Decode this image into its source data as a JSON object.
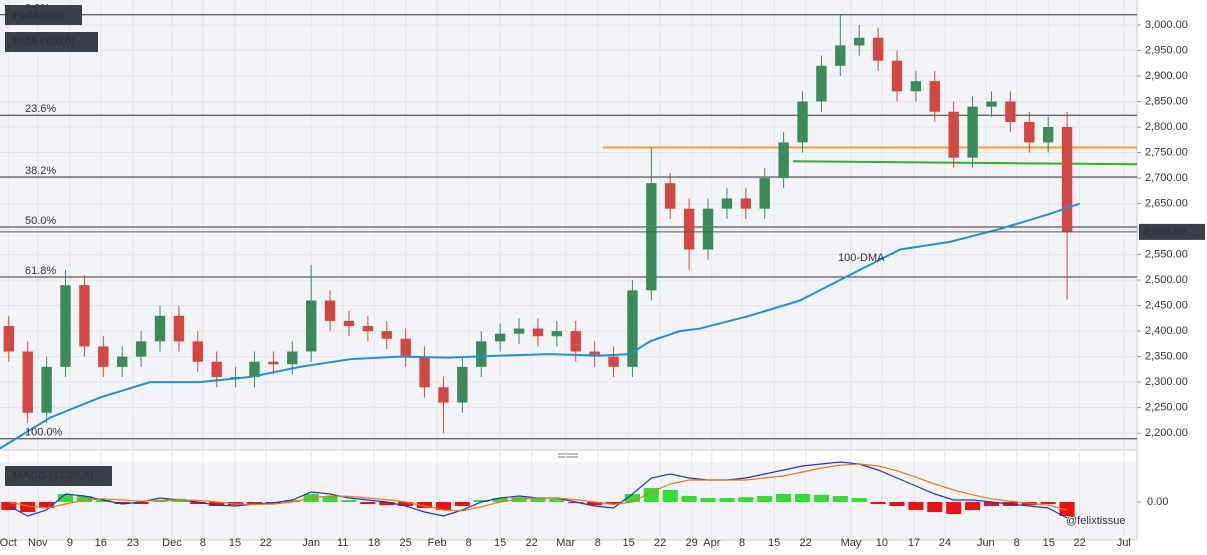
{
  "chart_data": [
    {
      "type": "candlestick",
      "title": "Palladium",
      "subtitle": "SMA (100,0)",
      "annotation": "100-DMA",
      "up_color": "#3b8a5a",
      "down_color": "#d2473f",
      "grid": true,
      "x": [
        1.4,
        4.4,
        7.4,
        10.4,
        13.4,
        16.4,
        19.4,
        22.4,
        25.4,
        28.4,
        31.4,
        34.4,
        37.4,
        40.4,
        43.4,
        46.4,
        49.4,
        52.4,
        55.4,
        58.4,
        61.4,
        64.4,
        67.4,
        70.4,
        73.4,
        76.4,
        79.4,
        82.4,
        85.4,
        88.4,
        91.4,
        94.4,
        97.4,
        100.4,
        103.4,
        106.4,
        109.4,
        112.4,
        115.4,
        118.4,
        121.4,
        124.4,
        127.4,
        130.4,
        133.4,
        136.4,
        139.4,
        142.4,
        145.4,
        148.4,
        151.4,
        154.4,
        157.4,
        160.4,
        163.4,
        166.4,
        169.4
      ],
      "open": [
        2410,
        2360,
        2240,
        2330,
        2490,
        2370,
        2330,
        2350,
        2380,
        2430,
        2380,
        2340,
        2310,
        2310,
        2340,
        2335,
        2360,
        2460,
        2420,
        2410,
        2400,
        2385,
        2350,
        2290,
        2260,
        2330,
        2380,
        2395,
        2405,
        2390,
        2400,
        2360,
        2350,
        2330,
        2480,
        2690,
        2640,
        2560,
        2640,
        2660,
        2640,
        2700,
        2770,
        2850,
        2920,
        2960,
        2975,
        2930,
        2870,
        2890,
        2830,
        2740,
        2840,
        2850,
        2810,
        2770,
        2800
      ],
      "high": [
        2430,
        2380,
        2350,
        2520,
        2510,
        2390,
        2370,
        2400,
        2450,
        2450,
        2400,
        2360,
        2330,
        2360,
        2360,
        2380,
        2530,
        2480,
        2440,
        2430,
        2420,
        2405,
        2370,
        2310,
        2350,
        2400,
        2415,
        2425,
        2425,
        2420,
        2420,
        2380,
        2370,
        2500,
        2760,
        2710,
        2660,
        2660,
        2680,
        2680,
        2720,
        2790,
        2870,
        2940,
        3020,
        3000,
        2995,
        2950,
        2910,
        2910,
        2850,
        2860,
        2870,
        2870,
        2830,
        2820,
        2830
      ],
      "low": [
        2340,
        2220,
        2220,
        2310,
        2350,
        2310,
        2310,
        2330,
        2360,
        2360,
        2320,
        2290,
        2290,
        2290,
        2315,
        2315,
        2340,
        2400,
        2390,
        2380,
        2365,
        2330,
        2270,
        2200,
        2240,
        2310,
        2360,
        2375,
        2370,
        2370,
        2340,
        2330,
        2310,
        2310,
        2460,
        2620,
        2520,
        2540,
        2620,
        2620,
        2620,
        2680,
        2750,
        2830,
        2900,
        2940,
        2910,
        2850,
        2850,
        2810,
        2720,
        2720,
        2820,
        2790,
        2750,
        2750,
        2462
      ],
      "close": [
        2360,
        2240,
        2330,
        2490,
        2370,
        2330,
        2350,
        2380,
        2430,
        2380,
        2340,
        2310,
        2310,
        2340,
        2335,
        2360,
        2460,
        2420,
        2410,
        2400,
        2385,
        2350,
        2290,
        2260,
        2330,
        2380,
        2395,
        2405,
        2390,
        2400,
        2360,
        2350,
        2330,
        2480,
        2690,
        2640,
        2560,
        2640,
        2660,
        2640,
        2700,
        2770,
        2850,
        2920,
        2960,
        2975,
        2930,
        2870,
        2890,
        2830,
        2740,
        2840,
        2850,
        2810,
        2770,
        2800,
        2594
      ],
      "sma": {
        "color": "#1e90e0",
        "x": [
          0,
          7.9,
          15.9,
          23.8,
          31.7,
          39.7,
          47.6,
          55.6,
          63.5,
          71.4,
          79.4,
          87.3,
          95.2,
          100,
          103.2,
          107.9,
          111.1,
          119,
          127,
          134.9,
          142.9,
          150.8,
          158.7,
          166.7,
          171.4
        ],
        "values": [
          2170,
          2230,
          2270,
          2300,
          2300,
          2310,
          2330,
          2345,
          2350,
          2348,
          2352,
          2355,
          2352,
          2355,
          2380,
          2400,
          2405,
          2430,
          2460,
          2510,
          2560,
          2575,
          2600,
          2630,
          2650
        ]
      },
      "levels": [
        {
          "label": "0.0%",
          "value": 3020
        },
        {
          "label": "23.6%",
          "value": 2823
        },
        {
          "label": "38.2%",
          "value": 2702
        },
        {
          "label": "50.0%",
          "value": 2604
        },
        {
          "label": "61.8%",
          "value": 2506
        },
        {
          "label": "100.0%",
          "value": 2189
        }
      ],
      "lines": [
        {
          "color": "#f0a030",
          "x": [
            95.7,
            180.5
          ],
          "values": [
            2760,
            2760
          ]
        },
        {
          "color": "#22bb22",
          "x": [
            125.9,
            180.5
          ],
          "values": [
            2733,
            2727
          ]
        }
      ],
      "last_price": {
        "value": 2594.5,
        "label": "2,594.50"
      },
      "xlim": [
        0,
        180.5
      ],
      "ylim": [
        2167,
        3049
      ],
      "yticks": [
        {
          "value": 2200,
          "label": "2,200.00"
        },
        {
          "value": 2250,
          "label": "2,250.00"
        },
        {
          "value": 2300,
          "label": "2,300.00"
        },
        {
          "value": 2350,
          "label": "2,350.00"
        },
        {
          "value": 2400,
          "label": "2,400.00"
        },
        {
          "value": 2450,
          "label": "2,450.00"
        },
        {
          "value": 2500,
          "label": "2,500.00"
        },
        {
          "value": 2550,
          "label": "2,550.00"
        },
        {
          "value": 2600,
          "label": "2,600.00"
        },
        {
          "value": 2650,
          "label": "2,650.00"
        },
        {
          "value": 2700,
          "label": "2,700.00"
        },
        {
          "value": 2750,
          "label": "2,750.00"
        },
        {
          "value": 2800,
          "label": "2,800.00"
        },
        {
          "value": 2850,
          "label": "2,850.00"
        },
        {
          "value": 2900,
          "label": "2,900.00"
        },
        {
          "value": 2950,
          "label": "2,950.00"
        },
        {
          "value": 3000,
          "label": "3,000.00"
        }
      ],
      "xticks": [
        {
          "value": 1.3,
          "label": "Oct"
        },
        {
          "value": 6,
          "label": "Nov"
        },
        {
          "value": 11.1,
          "label": "9"
        },
        {
          "value": 16,
          "label": "16"
        },
        {
          "value": 21.1,
          "label": "23"
        },
        {
          "value": 27.3,
          "label": "Dec"
        },
        {
          "value": 32.2,
          "label": "8"
        },
        {
          "value": 37.3,
          "label": "15"
        },
        {
          "value": 42.2,
          "label": "22"
        },
        {
          "value": 49.4,
          "label": "Jan"
        },
        {
          "value": 54.4,
          "label": "11"
        },
        {
          "value": 59.4,
          "label": "18"
        },
        {
          "value": 64.4,
          "label": "25"
        },
        {
          "value": 69.4,
          "label": "Feb"
        },
        {
          "value": 74.4,
          "label": "8"
        },
        {
          "value": 79.4,
          "label": "15"
        },
        {
          "value": 84.4,
          "label": "22"
        },
        {
          "value": 89.8,
          "label": "Mar"
        },
        {
          "value": 94.9,
          "label": "8"
        },
        {
          "value": 99.8,
          "label": "15"
        },
        {
          "value": 104.8,
          "label": "22"
        },
        {
          "value": 109.8,
          "label": "29"
        },
        {
          "value": 113,
          "label": "Apr"
        },
        {
          "value": 117.8,
          "label": "8"
        },
        {
          "value": 122.9,
          "label": "15"
        },
        {
          "value": 127.9,
          "label": "22"
        },
        {
          "value": 135.1,
          "label": "May"
        },
        {
          "value": 140,
          "label": "10"
        },
        {
          "value": 145.1,
          "label": "17"
        },
        {
          "value": 150,
          "label": "24"
        },
        {
          "value": 156.5,
          "label": "Jun"
        },
        {
          "value": 161.4,
          "label": "8"
        },
        {
          "value": 166.5,
          "label": "15"
        },
        {
          "value": 171.4,
          "label": "22"
        },
        {
          "value": 178.4,
          "label": "Jul"
        }
      ]
    },
    {
      "type": "macd",
      "title": "MACD (12,26,9)",
      "watermark": "@felixtissue",
      "xlim": [
        0,
        180.5
      ],
      "ylim": [
        -95,
        100
      ],
      "yticks": [
        {
          "value": 0,
          "label": "0.00"
        }
      ],
      "x": [
        1.4,
        4.4,
        7.4,
        10.4,
        13.4,
        16.4,
        19.4,
        22.4,
        25.4,
        28.4,
        31.4,
        34.4,
        37.4,
        40.4,
        43.4,
        46.4,
        49.4,
        52.4,
        55.4,
        58.4,
        61.4,
        64.4,
        67.4,
        70.4,
        73.4,
        76.4,
        79.4,
        82.4,
        85.4,
        88.4,
        91.4,
        94.4,
        97.4,
        100.4,
        103.4,
        106.4,
        109.4,
        112.4,
        115.4,
        118.4,
        121.4,
        124.4,
        127.4,
        130.4,
        133.4,
        136.4,
        139.4,
        142.4,
        145.4,
        148.4,
        151.4,
        154.4,
        157.4,
        160.4,
        163.4,
        166.4,
        169.4
      ],
      "histogram": {
        "up_color": "#33dd33",
        "down_color": "#ee1111",
        "values": [
          -20,
          -25,
          -15,
          20,
          15,
          5,
          -5,
          -5,
          5,
          8,
          -5,
          -10,
          -8,
          -5,
          -3,
          5,
          20,
          15,
          5,
          -5,
          -8,
          -10,
          -15,
          -20,
          -10,
          5,
          10,
          12,
          10,
          8,
          -3,
          -8,
          -5,
          20,
          35,
          30,
          15,
          10,
          10,
          12,
          15,
          20,
          20,
          18,
          15,
          10,
          -5,
          -10,
          -20,
          -25,
          -30,
          -20,
          -10,
          -10,
          -8,
          -5,
          -35
        ]
      },
      "series": [
        {
          "color": "#2233cc",
          "values": [
            -10,
            -35,
            -20,
            20,
            15,
            5,
            -5,
            0,
            10,
            5,
            0,
            -8,
            -10,
            -5,
            -2,
            5,
            25,
            20,
            10,
            5,
            0,
            -10,
            -25,
            -35,
            -20,
            0,
            10,
            15,
            10,
            10,
            0,
            -10,
            -15,
            20,
            60,
            70,
            60,
            55,
            55,
            60,
            70,
            80,
            90,
            95,
            100,
            95,
            80,
            60,
            40,
            20,
            5,
            5,
            0,
            -5,
            -10,
            -15,
            -40
          ]
        },
        {
          "color": "#ee7711",
          "values": [
            0,
            -10,
            -15,
            -5,
            5,
            8,
            5,
            2,
            4,
            5,
            4,
            0,
            -5,
            -6,
            -5,
            0,
            10,
            15,
            14,
            10,
            6,
            0,
            -10,
            -20,
            -22,
            -12,
            0,
            8,
            10,
            10,
            6,
            0,
            -6,
            0,
            25,
            45,
            55,
            55,
            55,
            55,
            60,
            65,
            75,
            85,
            92,
            95,
            90,
            78,
            62,
            45,
            30,
            18,
            8,
            2,
            -3,
            -8,
            -20
          ]
        }
      ]
    }
  ]
}
